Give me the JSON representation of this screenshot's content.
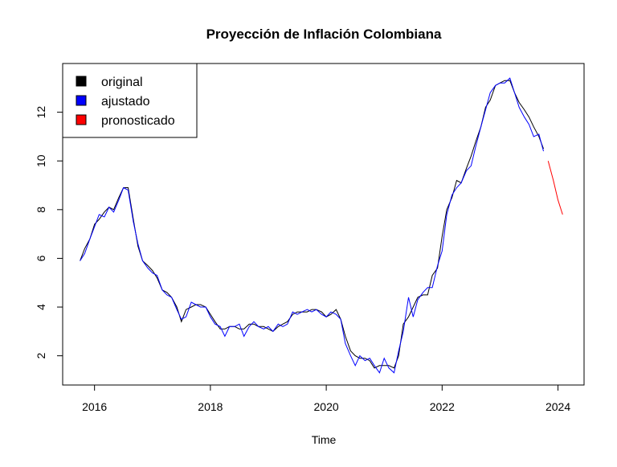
{
  "chart_data": {
    "type": "line",
    "title": "Proyección de Inflación Colombiana",
    "xlabel": "Time",
    "ylabel": "",
    "xlim": [
      2015.45,
      2024.45
    ],
    "ylim": [
      0.8,
      14.0
    ],
    "x_ticks": [
      2016,
      2018,
      2020,
      2022,
      2024
    ],
    "x_tick_labels": [
      "2016",
      "2018",
      "2020",
      "2022",
      "2024"
    ],
    "y_ticks": [
      2,
      4,
      6,
      8,
      10,
      12
    ],
    "y_tick_labels": [
      "2",
      "4",
      "6",
      "8",
      "10",
      "12"
    ],
    "grid": false,
    "legend": {
      "position": "top-left",
      "entries": [
        {
          "label": "original",
          "color": "#000000"
        },
        {
          "label": "ajustado",
          "color": "#0000ff"
        },
        {
          "label": "pronosticado",
          "color": "#ff0000"
        }
      ]
    },
    "series": [
      {
        "name": "original",
        "color": "#000000",
        "x": [
          2015.75,
          2015.83,
          2015.92,
          2016.0,
          2016.08,
          2016.17,
          2016.25,
          2016.33,
          2016.42,
          2016.5,
          2016.58,
          2016.67,
          2016.75,
          2016.83,
          2016.92,
          2017.0,
          2017.08,
          2017.17,
          2017.25,
          2017.33,
          2017.42,
          2017.5,
          2017.58,
          2017.67,
          2017.75,
          2017.83,
          2017.92,
          2018.0,
          2018.08,
          2018.17,
          2018.25,
          2018.33,
          2018.42,
          2018.5,
          2018.58,
          2018.67,
          2018.75,
          2018.83,
          2018.92,
          2019.0,
          2019.08,
          2019.17,
          2019.25,
          2019.33,
          2019.42,
          2019.5,
          2019.58,
          2019.67,
          2019.75,
          2019.83,
          2019.92,
          2020.0,
          2020.08,
          2020.17,
          2020.25,
          2020.33,
          2020.42,
          2020.5,
          2020.58,
          2020.67,
          2020.75,
          2020.83,
          2020.92,
          2021.0,
          2021.08,
          2021.17,
          2021.25,
          2021.33,
          2021.42,
          2021.5,
          2021.58,
          2021.67,
          2021.75,
          2021.83,
          2021.92,
          2022.0,
          2022.08,
          2022.17,
          2022.25,
          2022.33,
          2022.42,
          2022.5,
          2022.58,
          2022.67,
          2022.75,
          2022.83,
          2022.92,
          2023.0,
          2023.08,
          2023.17,
          2023.25,
          2023.33,
          2023.42,
          2023.5,
          2023.58,
          2023.67,
          2023.75
        ],
        "values": [
          5.9,
          6.4,
          6.8,
          7.4,
          7.6,
          7.9,
          8.1,
          8.0,
          8.5,
          8.9,
          8.9,
          7.6,
          6.5,
          5.9,
          5.7,
          5.5,
          5.2,
          4.7,
          4.6,
          4.4,
          4.0,
          3.4,
          3.9,
          4.0,
          4.1,
          4.1,
          4.0,
          3.7,
          3.4,
          3.1,
          3.1,
          3.2,
          3.2,
          3.1,
          3.1,
          3.3,
          3.3,
          3.2,
          3.2,
          3.1,
          3.0,
          3.2,
          3.3,
          3.4,
          3.7,
          3.8,
          3.8,
          3.8,
          3.9,
          3.9,
          3.8,
          3.6,
          3.7,
          3.9,
          3.5,
          2.8,
          2.2,
          2.0,
          1.9,
          1.9,
          1.8,
          1.5,
          1.6,
          1.6,
          1.6,
          1.5,
          2.0,
          3.3,
          3.6,
          4.0,
          4.4,
          4.5,
          4.5,
          5.3,
          5.6,
          6.9,
          8.0,
          8.5,
          9.2,
          9.1,
          9.7,
          10.2,
          10.8,
          11.4,
          12.2,
          12.5,
          13.1,
          13.2,
          13.3,
          13.3,
          12.8,
          12.4,
          12.1,
          11.8,
          11.4,
          11.0,
          10.5
        ]
      },
      {
        "name": "ajustado",
        "color": "#0000ff",
        "x": [
          2015.75,
          2015.83,
          2015.92,
          2016.0,
          2016.08,
          2016.17,
          2016.25,
          2016.33,
          2016.42,
          2016.5,
          2016.58,
          2016.67,
          2016.75,
          2016.83,
          2016.92,
          2017.0,
          2017.08,
          2017.17,
          2017.25,
          2017.33,
          2017.42,
          2017.5,
          2017.58,
          2017.67,
          2017.75,
          2017.83,
          2017.92,
          2018.0,
          2018.08,
          2018.17,
          2018.25,
          2018.33,
          2018.42,
          2018.5,
          2018.58,
          2018.67,
          2018.75,
          2018.83,
          2018.92,
          2019.0,
          2019.08,
          2019.17,
          2019.25,
          2019.33,
          2019.42,
          2019.5,
          2019.58,
          2019.67,
          2019.75,
          2019.83,
          2019.92,
          2020.0,
          2020.08,
          2020.17,
          2020.25,
          2020.33,
          2020.42,
          2020.5,
          2020.58,
          2020.67,
          2020.75,
          2020.83,
          2020.92,
          2021.0,
          2021.08,
          2021.17,
          2021.25,
          2021.33,
          2021.42,
          2021.5,
          2021.58,
          2021.67,
          2021.75,
          2021.83,
          2021.92,
          2022.0,
          2022.08,
          2022.17,
          2022.25,
          2022.33,
          2022.42,
          2022.5,
          2022.58,
          2022.67,
          2022.75,
          2022.83,
          2022.92,
          2023.0,
          2023.08,
          2023.17,
          2023.25,
          2023.33,
          2023.42,
          2023.5,
          2023.58,
          2023.67,
          2023.75
        ],
        "values": [
          5.9,
          6.2,
          6.8,
          7.3,
          7.8,
          7.7,
          8.1,
          7.9,
          8.4,
          8.9,
          8.8,
          7.5,
          6.6,
          5.9,
          5.6,
          5.4,
          5.3,
          4.7,
          4.5,
          4.4,
          3.9,
          3.5,
          3.6,
          4.2,
          4.1,
          4.0,
          4.0,
          3.6,
          3.3,
          3.2,
          2.8,
          3.2,
          3.2,
          3.3,
          2.8,
          3.2,
          3.4,
          3.2,
          3.1,
          3.2,
          3.0,
          3.3,
          3.2,
          3.3,
          3.8,
          3.7,
          3.8,
          3.9,
          3.8,
          3.9,
          3.7,
          3.6,
          3.8,
          3.7,
          3.5,
          2.5,
          2.0,
          1.6,
          2.0,
          1.8,
          1.9,
          1.6,
          1.3,
          1.9,
          1.5,
          1.3,
          2.2,
          3.0,
          4.4,
          3.6,
          4.3,
          4.6,
          4.8,
          4.8,
          5.7,
          6.3,
          7.8,
          8.6,
          8.9,
          9.1,
          9.6,
          9.8,
          10.6,
          11.4,
          12.1,
          12.8,
          13.1,
          13.2,
          13.2,
          13.4,
          12.8,
          12.2,
          11.8,
          11.5,
          11.0,
          11.1,
          10.4
        ]
      },
      {
        "name": "pronosticado",
        "color": "#ff0000",
        "x": [
          2023.83,
          2023.92,
          2024.0,
          2024.08
        ],
        "values": [
          10.0,
          9.2,
          8.4,
          7.8
        ]
      }
    ]
  }
}
